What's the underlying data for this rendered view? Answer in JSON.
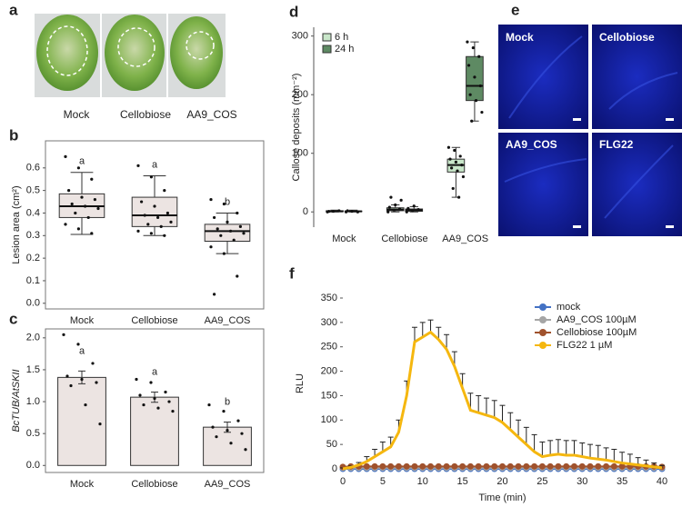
{
  "panel_a": {
    "label": "a",
    "captions": [
      "Mock",
      "Cellobiose",
      "AA9_COS"
    ]
  },
  "panel_e": {
    "label": "e",
    "captions": [
      "Mock",
      "Cellobiose",
      "AA9_COS",
      "FLG22"
    ]
  },
  "chart_data": [
    {
      "type": "boxplot",
      "panel_label": "b",
      "ylabel": "Lesion area (cm²)",
      "categories": [
        "Mock",
        "Cellobiose",
        "AA9_COS"
      ],
      "color": "#ece4e2",
      "boxes": [
        {
          "min": 0.305,
          "q1": 0.38,
          "median": 0.43,
          "q3": 0.485,
          "max": 0.58
        },
        {
          "min": 0.3,
          "q1": 0.34,
          "median": 0.39,
          "q3": 0.47,
          "max": 0.565
        },
        {
          "min": 0.22,
          "q1": 0.275,
          "median": 0.32,
          "q3": 0.35,
          "max": 0.4
        }
      ],
      "points": [
        [
          0.65,
          0.6,
          0.55,
          0.5,
          0.47,
          0.46,
          0.44,
          0.43,
          0.42,
          0.4,
          0.38,
          0.35,
          0.33,
          0.31
        ],
        [
          0.61,
          0.56,
          0.5,
          0.45,
          0.43,
          0.4,
          0.39,
          0.38,
          0.36,
          0.35,
          0.34,
          0.32,
          0.31,
          0.3
        ],
        [
          0.46,
          0.44,
          0.4,
          0.38,
          0.36,
          0.34,
          0.33,
          0.32,
          0.31,
          0.3,
          0.28,
          0.25,
          0.22,
          0.12,
          0.04
        ]
      ],
      "letters": [
        "a",
        "a",
        "b"
      ],
      "ylim": [
        -0.025,
        0.72
      ],
      "yticks": [
        {
          "value": 0,
          "label": "0.0"
        },
        0.1,
        0.2,
        0.3,
        0.4,
        0.5,
        0.6
      ]
    },
    {
      "type": "bar",
      "panel_label": "c",
      "ylabel": "BcTUB/AtSKII",
      "categories": [
        "Mock",
        "Cellobiose",
        "AA9_COS"
      ],
      "color": "#ece4e2",
      "values": [
        1.38,
        1.07,
        0.6
      ],
      "errors": [
        0.1,
        0.08,
        0.08
      ],
      "points": [
        [
          2.05,
          1.9,
          1.6,
          1.4,
          1.35,
          1.3,
          1.25,
          0.95,
          0.65
        ],
        [
          1.35,
          1.3,
          1.15,
          1.1,
          1.05,
          1.0,
          0.95,
          0.9,
          0.85
        ],
        [
          0.95,
          0.85,
          0.7,
          0.6,
          0.55,
          0.5,
          0.45,
          0.35,
          0.25
        ]
      ],
      "letters": [
        "a",
        "a",
        "b"
      ],
      "ylim": [
        -0.11,
        2.14
      ],
      "yticks": [
        {
          "value": 0,
          "label": "0.0"
        },
        0.5,
        {
          "value": 1,
          "label": "1.0"
        },
        1.5,
        {
          "value": 2,
          "label": "2.0"
        }
      ]
    },
    {
      "type": "grouped_boxplot",
      "panel_label": "d",
      "ylabel": "Callose deposits (mm⁻²)",
      "categories": [
        "Mock",
        "Cellobiose",
        "AA9_COS"
      ],
      "legend": "upper left",
      "series": [
        {
          "name": "6 h",
          "color": "#c8e6c9",
          "boxes": [
            {
              "min": 0,
              "q1": 0.5,
              "median": 1,
              "q3": 2,
              "max": 3
            },
            {
              "min": 0,
              "q1": 2,
              "median": 4,
              "q3": 7,
              "max": 12
            },
            {
              "min": 25,
              "q1": 68,
              "median": 80,
              "q3": 90,
              "max": 110
            }
          ],
          "points": [
            [
              0,
              1,
              2,
              1
            ],
            [
              0,
              3,
              5,
              8,
              12,
              20,
              25
            ],
            [
              110,
              105,
              95,
              90,
              85,
              80,
              75,
              70,
              60,
              40,
              25
            ]
          ]
        },
        {
          "name": "24 h",
          "color": "#5e8a63",
          "boxes": [
            {
              "min": 0,
              "q1": 0.5,
              "median": 1,
              "q3": 1.5,
              "max": 3
            },
            {
              "min": 0,
              "q1": 1,
              "median": 3,
              "q3": 5,
              "max": 9
            },
            {
              "min": 155,
              "q1": 190,
              "median": 215,
              "q3": 265,
              "max": 290
            }
          ],
          "points": [
            [
              0,
              1,
              0,
              2
            ],
            [
              0,
              2,
              4,
              6,
              10
            ],
            [
              290,
              280,
              265,
              250,
              230,
              215,
              200,
              190,
              170,
              155
            ]
          ]
        }
      ],
      "ylim": [
        -26,
        315
      ],
      "yticks": [
        0,
        100,
        200,
        300
      ]
    },
    {
      "type": "line",
      "panel_label": "f",
      "xlabel": "Time (min)",
      "ylabel": "RLU",
      "legend": "upper right",
      "x": [
        0,
        1,
        2,
        3,
        4,
        5,
        6,
        7,
        8,
        9,
        10,
        11,
        12,
        13,
        14,
        15,
        16,
        17,
        18,
        19,
        20,
        21,
        22,
        23,
        24,
        25,
        26,
        27,
        28,
        29,
        30,
        31,
        32,
        33,
        34,
        35,
        36,
        37,
        38,
        39,
        40
      ],
      "series": [
        {
          "name": "mock",
          "color": "#4472c4",
          "values": [
            0,
            0,
            0,
            0,
            0,
            0,
            0,
            0,
            0,
            0,
            0,
            0,
            0,
            0,
            0,
            0,
            0,
            0,
            0,
            0,
            0,
            0,
            0,
            0,
            0,
            0,
            0,
            0,
            0,
            0,
            0,
            0,
            0,
            0,
            0,
            0,
            0,
            0,
            0,
            0,
            0
          ]
        },
        {
          "name": "AA9_COS 100µM",
          "color": "#a5a5a5",
          "values": [
            2,
            2,
            2,
            2,
            2,
            2,
            2,
            2,
            2,
            2,
            2,
            2,
            2,
            2,
            2,
            2,
            2,
            2,
            2,
            2,
            2,
            2,
            2,
            2,
            2,
            2,
            2,
            2,
            2,
            2,
            2,
            2,
            2,
            2,
            2,
            2,
            2,
            2,
            2,
            2,
            2
          ]
        },
        {
          "name": "Cellobiose 100µM",
          "color": "#a0522d",
          "values": [
            4,
            5,
            5,
            5,
            5,
            5,
            5,
            5,
            5,
            5,
            5,
            5,
            5,
            5,
            5,
            5,
            5,
            5,
            5,
            5,
            5,
            5,
            5,
            5,
            5,
            5,
            5,
            5,
            5,
            5,
            5,
            5,
            5,
            5,
            5,
            5,
            5,
            5,
            5,
            5,
            4
          ]
        },
        {
          "name": "FLG22 1 µM",
          "color": "#f5b70f",
          "values": [
            0,
            3,
            8,
            15,
            25,
            35,
            45,
            75,
            150,
            260,
            270,
            280,
            265,
            245,
            210,
            165,
            120,
            115,
            110,
            105,
            95,
            80,
            65,
            50,
            35,
            25,
            28,
            30,
            28,
            28,
            25,
            22,
            20,
            18,
            15,
            12,
            10,
            8,
            6,
            4,
            2
          ],
          "errors": [
            2,
            3,
            5,
            10,
            15,
            20,
            20,
            25,
            30,
            30,
            30,
            25,
            25,
            30,
            30,
            30,
            35,
            35,
            35,
            35,
            35,
            35,
            35,
            35,
            35,
            30,
            30,
            30,
            30,
            30,
            28,
            28,
            28,
            25,
            25,
            22,
            20,
            15,
            12,
            8,
            5
          ]
        }
      ],
      "xlim": [
        0,
        40
      ],
      "xticks": [
        0,
        5,
        10,
        15,
        20,
        25,
        30,
        35,
        40
      ],
      "ylim": [
        0,
        350
      ],
      "yticks": [
        0,
        50,
        100,
        150,
        200,
        250,
        300,
        350
      ]
    }
  ]
}
